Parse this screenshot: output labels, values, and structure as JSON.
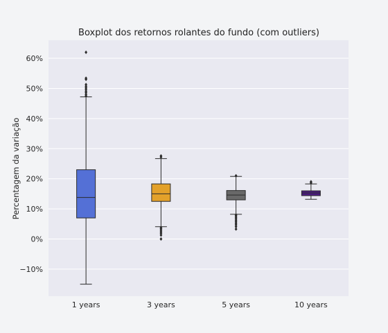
{
  "chart_data": {
    "type": "boxplot",
    "title": "Boxplot dos retornos rolantes do fundo (com outliers)",
    "xlabel": "",
    "ylabel": "Percentagem da variação",
    "ylim": [
      -19,
      66
    ],
    "yticks": [
      -10,
      0,
      10,
      20,
      30,
      40,
      50,
      60
    ],
    "ytick_labels": [
      "−10%",
      "0%",
      "10%",
      "20%",
      "30%",
      "40%",
      "50%",
      "60%"
    ],
    "grid": true,
    "legend": "none",
    "categories": [
      "1 years",
      "3 years",
      "5 years",
      "10 years"
    ],
    "boxes": [
      {
        "name": "1 years",
        "color": "#5470d6",
        "whisker_low": -15.0,
        "q1": 7.0,
        "median": 13.8,
        "q3": 23.0,
        "whisker_high": 47.2,
        "outliers": [
          47.5,
          48.0,
          48.6,
          49.1,
          49.7,
          50.2,
          50.7,
          51.3,
          53.0,
          53.4,
          62.0
        ]
      },
      {
        "name": "3 years",
        "color": "#e3a12a",
        "whisker_low": 4.1,
        "q1": 12.5,
        "median": 15.0,
        "q3": 18.3,
        "whisker_high": 26.7,
        "outliers": [
          0.0,
          1.3,
          1.9,
          2.4,
          2.9,
          3.4,
          3.8,
          27.2,
          27.6
        ]
      },
      {
        "name": "5 years",
        "color": "#696969",
        "whisker_low": 8.2,
        "q1": 13.0,
        "median": 14.6,
        "q3": 16.1,
        "whisker_high": 20.8,
        "outliers": [
          3.3,
          4.1,
          4.7,
          5.2,
          5.7,
          6.2,
          6.7,
          7.2,
          7.7,
          8.0,
          21.0
        ]
      },
      {
        "name": "10 years",
        "color": "#4b1c7f",
        "whisker_low": 13.2,
        "q1": 14.4,
        "median": 15.3,
        "q3": 16.0,
        "whisker_high": 18.3,
        "outliers": [
          18.6,
          19.0
        ]
      }
    ]
  }
}
